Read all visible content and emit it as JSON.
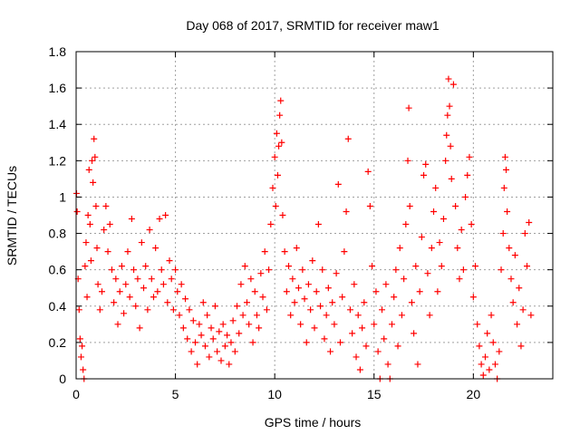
{
  "chart_data": {
    "type": "scatter",
    "title": "Day 068 of 2017, SRMTID for receiver maw1",
    "xlabel": "GPS time / hours",
    "ylabel": "SRMTID / TECUs",
    "xlim": [
      0,
      24
    ],
    "ylim": [
      0,
      1.8
    ],
    "xticks": [
      "0",
      "5",
      "10",
      "15",
      "20"
    ],
    "xtick_values": [
      0,
      5,
      10,
      15,
      20
    ],
    "yticks": [
      "0",
      "0.2",
      "0.4",
      "0.6",
      "0.8",
      "1",
      "1.2",
      "1.4",
      "1.6",
      "1.8"
    ],
    "ytick_values": [
      0,
      0.2,
      0.4,
      0.6,
      0.8,
      1.0,
      1.2,
      1.4,
      1.6,
      1.8
    ],
    "grid": true,
    "marker": "+",
    "color": "#ff0000",
    "series": [
      {
        "name": "SRMTID",
        "points": [
          [
            0.02,
            1.02
          ],
          [
            0.05,
            0.92
          ],
          [
            0.1,
            0.55
          ],
          [
            0.15,
            0.38
          ],
          [
            0.2,
            0.22
          ],
          [
            0.25,
            0.12
          ],
          [
            0.3,
            0.18
          ],
          [
            0.35,
            0.05
          ],
          [
            0.4,
            0.0
          ],
          [
            0.45,
            0.62
          ],
          [
            0.5,
            0.75
          ],
          [
            0.55,
            0.45
          ],
          [
            0.6,
            0.9
          ],
          [
            0.65,
            1.15
          ],
          [
            0.7,
            0.85
          ],
          [
            0.75,
            0.65
          ],
          [
            0.8,
            1.2
          ],
          [
            0.85,
            1.08
          ],
          [
            0.9,
            1.32
          ],
          [
            0.95,
            1.22
          ],
          [
            1.0,
            0.95
          ],
          [
            1.05,
            0.72
          ],
          [
            1.1,
            0.52
          ],
          [
            1.2,
            0.38
          ],
          [
            1.3,
            0.48
          ],
          [
            1.4,
            0.82
          ],
          [
            1.5,
            0.95
          ],
          [
            1.6,
            0.7
          ],
          [
            1.7,
            0.85
          ],
          [
            1.8,
            0.6
          ],
          [
            1.9,
            0.42
          ],
          [
            2.0,
            0.55
          ],
          [
            2.1,
            0.3
          ],
          [
            2.2,
            0.48
          ],
          [
            2.3,
            0.62
          ],
          [
            2.4,
            0.36
          ],
          [
            2.5,
            0.52
          ],
          [
            2.6,
            0.7
          ],
          [
            2.7,
            0.45
          ],
          [
            2.8,
            0.88
          ],
          [
            2.9,
            0.6
          ],
          [
            3.0,
            0.4
          ],
          [
            3.1,
            0.55
          ],
          [
            3.2,
            0.28
          ],
          [
            3.3,
            0.75
          ],
          [
            3.4,
            0.5
          ],
          [
            3.5,
            0.62
          ],
          [
            3.6,
            0.38
          ],
          [
            3.7,
            0.82
          ],
          [
            3.8,
            0.55
          ],
          [
            3.9,
            0.45
          ],
          [
            4.0,
            0.72
          ],
          [
            4.1,
            0.48
          ],
          [
            4.2,
            0.88
          ],
          [
            4.3,
            0.6
          ],
          [
            4.4,
            0.52
          ],
          [
            4.5,
            0.9
          ],
          [
            4.6,
            0.42
          ],
          [
            4.7,
            0.65
          ],
          [
            4.8,
            0.55
          ],
          [
            4.9,
            0.38
          ],
          [
            5.0,
            0.6
          ],
          [
            5.1,
            0.48
          ],
          [
            5.2,
            0.35
          ],
          [
            5.3,
            0.52
          ],
          [
            5.4,
            0.28
          ],
          [
            5.5,
            0.44
          ],
          [
            5.6,
            0.22
          ],
          [
            5.7,
            0.38
          ],
          [
            5.8,
            0.15
          ],
          [
            5.9,
            0.32
          ],
          [
            6.0,
            0.2
          ],
          [
            6.1,
            0.08
          ],
          [
            6.2,
            0.3
          ],
          [
            6.3,
            0.24
          ],
          [
            6.4,
            0.42
          ],
          [
            6.5,
            0.18
          ],
          [
            6.6,
            0.35
          ],
          [
            6.7,
            0.12
          ],
          [
            6.8,
            0.28
          ],
          [
            6.9,
            0.22
          ],
          [
            7.0,
            0.4
          ],
          [
            7.1,
            0.15
          ],
          [
            7.2,
            0.26
          ],
          [
            7.3,
            0.1
          ],
          [
            7.4,
            0.3
          ],
          [
            7.5,
            0.18
          ],
          [
            7.6,
            0.24
          ],
          [
            7.7,
            0.08
          ],
          [
            7.8,
            0.2
          ],
          [
            7.9,
            0.32
          ],
          [
            8.0,
            0.15
          ],
          [
            8.1,
            0.4
          ],
          [
            8.2,
            0.25
          ],
          [
            8.3,
            0.52
          ],
          [
            8.4,
            0.35
          ],
          [
            8.5,
            0.62
          ],
          [
            8.6,
            0.42
          ],
          [
            8.7,
            0.3
          ],
          [
            8.8,
            0.55
          ],
          [
            8.9,
            0.2
          ],
          [
            9.0,
            0.48
          ],
          [
            9.1,
            0.35
          ],
          [
            9.2,
            0.28
          ],
          [
            9.3,
            0.58
          ],
          [
            9.4,
            0.45
          ],
          [
            9.5,
            0.7
          ],
          [
            9.6,
            0.38
          ],
          [
            9.7,
            0.6
          ],
          [
            9.8,
            0.85
          ],
          [
            9.9,
            1.05
          ],
          [
            10.0,
            1.22
          ],
          [
            10.05,
            0.95
          ],
          [
            10.1,
            1.35
          ],
          [
            10.15,
            1.12
          ],
          [
            10.2,
            1.28
          ],
          [
            10.25,
            1.45
          ],
          [
            10.3,
            1.53
          ],
          [
            10.35,
            1.3
          ],
          [
            10.4,
            0.9
          ],
          [
            10.5,
            0.7
          ],
          [
            10.6,
            0.48
          ],
          [
            10.7,
            0.62
          ],
          [
            10.8,
            0.35
          ],
          [
            10.9,
            0.55
          ],
          [
            11.0,
            0.42
          ],
          [
            11.1,
            0.72
          ],
          [
            11.2,
            0.5
          ],
          [
            11.3,
            0.3
          ],
          [
            11.4,
            0.6
          ],
          [
            11.5,
            0.44
          ],
          [
            11.6,
            0.2
          ],
          [
            11.7,
            0.52
          ],
          [
            11.8,
            0.38
          ],
          [
            11.9,
            0.65
          ],
          [
            12.0,
            0.28
          ],
          [
            12.1,
            0.48
          ],
          [
            12.2,
            0.85
          ],
          [
            12.3,
            0.4
          ],
          [
            12.4,
            0.6
          ],
          [
            12.5,
            0.22
          ],
          [
            12.6,
            0.35
          ],
          [
            12.7,
            0.5
          ],
          [
            12.8,
            0.15
          ],
          [
            12.9,
            0.42
          ],
          [
            13.0,
            0.3
          ],
          [
            13.1,
            0.58
          ],
          [
            13.2,
            1.07
          ],
          [
            13.3,
            0.2
          ],
          [
            13.4,
            0.45
          ],
          [
            13.5,
            0.7
          ],
          [
            13.6,
            0.92
          ],
          [
            13.7,
            1.32
          ],
          [
            13.8,
            0.38
          ],
          [
            13.9,
            0.25
          ],
          [
            14.0,
            0.52
          ],
          [
            14.1,
            0.12
          ],
          [
            14.2,
            0.35
          ],
          [
            14.3,
            0.05
          ],
          [
            14.4,
            0.28
          ],
          [
            14.5,
            0.42
          ],
          [
            14.6,
            0.18
          ],
          [
            14.7,
            1.14
          ],
          [
            14.8,
            0.95
          ],
          [
            14.9,
            0.62
          ],
          [
            15.0,
            0.3
          ],
          [
            15.1,
            0.48
          ],
          [
            15.2,
            0.15
          ],
          [
            15.3,
            0.0
          ],
          [
            15.4,
            0.38
          ],
          [
            15.5,
            0.22
          ],
          [
            15.6,
            0.52
          ],
          [
            15.7,
            0.08
          ],
          [
            15.8,
            0.0
          ],
          [
            15.9,
            0.3
          ],
          [
            16.0,
            0.45
          ],
          [
            16.1,
            0.6
          ],
          [
            16.2,
            0.18
          ],
          [
            16.3,
            0.72
          ],
          [
            16.4,
            0.35
          ],
          [
            16.5,
            0.55
          ],
          [
            16.6,
            0.85
          ],
          [
            16.7,
            1.2
          ],
          [
            16.75,
            1.49
          ],
          [
            16.8,
            0.95
          ],
          [
            16.9,
            0.42
          ],
          [
            17.0,
            0.25
          ],
          [
            17.1,
            0.62
          ],
          [
            17.2,
            0.08
          ],
          [
            17.3,
            0.48
          ],
          [
            17.4,
            0.78
          ],
          [
            17.5,
            1.12
          ],
          [
            17.6,
            1.18
          ],
          [
            17.7,
            0.58
          ],
          [
            17.8,
            0.35
          ],
          [
            17.9,
            0.72
          ],
          [
            18.0,
            0.92
          ],
          [
            18.1,
            1.05
          ],
          [
            18.2,
            0.48
          ],
          [
            18.3,
            0.75
          ],
          [
            18.4,
            0.62
          ],
          [
            18.5,
            0.88
          ],
          [
            18.6,
            1.2
          ],
          [
            18.65,
            1.34
          ],
          [
            18.7,
            1.45
          ],
          [
            18.75,
            1.65
          ],
          [
            18.8,
            1.5
          ],
          [
            18.85,
            1.28
          ],
          [
            18.9,
            1.1
          ],
          [
            19.0,
            1.62
          ],
          [
            19.1,
            0.95
          ],
          [
            19.2,
            0.72
          ],
          [
            19.3,
            0.55
          ],
          [
            19.4,
            0.82
          ],
          [
            19.5,
            0.6
          ],
          [
            19.6,
            1.0
          ],
          [
            19.7,
            1.12
          ],
          [
            19.8,
            1.22
          ],
          [
            19.9,
            0.85
          ],
          [
            20.0,
            0.45
          ],
          [
            20.1,
            0.62
          ],
          [
            20.2,
            0.3
          ],
          [
            20.3,
            0.18
          ],
          [
            20.4,
            0.08
          ],
          [
            20.5,
            0.02
          ],
          [
            20.6,
            0.12
          ],
          [
            20.7,
            0.25
          ],
          [
            20.8,
            0.05
          ],
          [
            20.9,
            0.35
          ],
          [
            21.0,
            0.2
          ],
          [
            21.1,
            0.08
          ],
          [
            21.2,
            0.0
          ],
          [
            21.3,
            0.15
          ],
          [
            21.4,
            0.6
          ],
          [
            21.5,
            0.8
          ],
          [
            21.55,
            1.05
          ],
          [
            21.6,
            1.22
          ],
          [
            21.65,
            1.15
          ],
          [
            21.7,
            0.92
          ],
          [
            21.8,
            0.72
          ],
          [
            21.9,
            0.55
          ],
          [
            22.0,
            0.42
          ],
          [
            22.1,
            0.68
          ],
          [
            22.2,
            0.3
          ],
          [
            22.3,
            0.5
          ],
          [
            22.4,
            0.18
          ],
          [
            22.5,
            0.38
          ],
          [
            22.6,
            0.8
          ],
          [
            22.7,
            0.62
          ],
          [
            22.8,
            0.86
          ],
          [
            22.9,
            0.35
          ]
        ]
      }
    ]
  }
}
